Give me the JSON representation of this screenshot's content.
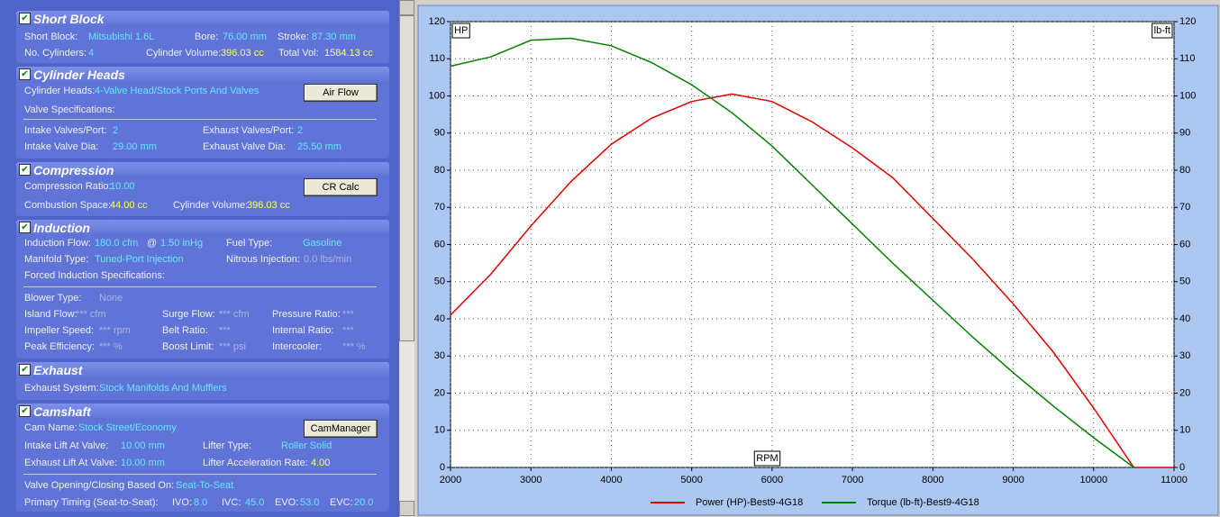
{
  "panel": {
    "sections": [
      {
        "title": "Short Block",
        "rows": [
          [
            {
              "label": "Short Block:",
              "value": "Mitsubishi 1.6L"
            },
            {
              "label": "Bore:",
              "value": "76.00 mm"
            },
            {
              "label": "Stroke:",
              "value": "87.30 mm"
            }
          ],
          [
            {
              "label": "No. Cylinders:",
              "value": "4"
            },
            {
              "label": "Cylinder Volume:",
              "value": "396.03 cc"
            },
            {
              "label": "Total Vol:",
              "value": "1584.13 cc"
            }
          ]
        ]
      },
      {
        "title": "Cylinder Heads",
        "button": "Air Flow",
        "rows": [
          [
            {
              "label": "Cylinder Heads:",
              "value": "4-Valve Head/Stock Ports And Valves"
            }
          ],
          [
            {
              "label": "Valve Specifications:"
            }
          ],
          [
            {
              "label": "Intake Valves/Port:",
              "value": "2"
            },
            {
              "label": "Exhaust Valves/Port:",
              "value": "2"
            }
          ],
          [
            {
              "label": "Intake Valve Dia:",
              "value": "29.00 mm"
            },
            {
              "label": "Exhaust Valve Dia:",
              "value": "25.50 mm"
            }
          ]
        ]
      },
      {
        "title": "Compression",
        "button": "CR Calc",
        "rows": [
          [
            {
              "label": "Compression Ratio:",
              "value": "10.00"
            }
          ],
          [
            {
              "label": "Combustion Space:",
              "value": "44.00 cc"
            },
            {
              "label": "Cylinder Volume:",
              "value": "396.03 cc"
            }
          ]
        ]
      },
      {
        "title": "Induction",
        "rows": [
          [
            {
              "label": "Induction Flow:",
              "value": "180.0 cfm"
            },
            {
              "label": "@",
              "value": "1.50 inHg"
            },
            {
              "label": "Fuel Type:",
              "value": "Gasoline"
            }
          ],
          [
            {
              "label": "Manifold Type:",
              "value": "Tuned-Port Injection"
            },
            {
              "label": "Nitrous Injection:",
              "value": "0.0 lbs/min"
            }
          ],
          [
            {
              "label": "Forced Induction Specifications:"
            }
          ],
          [
            {
              "label": "Blower Type:",
              "value": "None"
            }
          ],
          [
            {
              "label": "Island Flow:",
              "value": "*** cfm"
            },
            {
              "label": "Surge Flow:",
              "value": "*** cfm"
            },
            {
              "label": "Pressure Ratio:",
              "value": "***"
            }
          ],
          [
            {
              "label": "Impeller Speed:",
              "value": "*** rpm"
            },
            {
              "label": "Belt Ratio:",
              "value": "***"
            },
            {
              "label": "Internal Ratio:",
              "value": "***"
            }
          ],
          [
            {
              "label": "Peak Efficiency:",
              "value": "*** %"
            },
            {
              "label": "Boost Limit:",
              "value": "*** psi"
            },
            {
              "label": "Intercooler:",
              "value": "*** %"
            }
          ]
        ]
      },
      {
        "title": "Exhaust",
        "rows": [
          [
            {
              "label": "Exhaust System:",
              "value": "Stock Manifolds And Mufflers"
            }
          ]
        ]
      },
      {
        "title": "Camshaft",
        "button": "CamManager",
        "rows": [
          [
            {
              "label": "Cam Name:",
              "value": "Stock Street/Economy"
            }
          ],
          [
            {
              "label": "Intake Lift At Valve:",
              "value": "10.00 mm"
            },
            {
              "label": "Lifter Type:",
              "value": "Roller Solid"
            }
          ],
          [
            {
              "label": "Exhaust Lift At Valve:",
              "value": "10.00 mm"
            },
            {
              "label": "Lifter Acceleration Rate:",
              "value": "4.00"
            }
          ],
          [
            {
              "label": "Valve Opening/Closing Based On:",
              "value": "Seat-To-Seat"
            }
          ],
          [
            {
              "label": "Primary Timing  (Seat-to-Seat):"
            },
            {
              "label": "IVO:",
              "value": "8.0"
            },
            {
              "label": "IVC:",
              "value": "45.0"
            },
            {
              "label": "EVO:",
              "value": "53.0"
            },
            {
              "label": "EVC:",
              "value": "20.0"
            }
          ]
        ]
      }
    ]
  },
  "chart_data": {
    "type": "line",
    "y_label": "HP",
    "y2_label": "lb-ft",
    "x_label": "RPM",
    "x": [
      2000,
      2500,
      3000,
      3500,
      4000,
      4500,
      5000,
      5500,
      6000,
      6500,
      7000,
      7500,
      8000,
      8500,
      9000,
      9500,
      10000,
      10500,
      11000
    ],
    "series": [
      {
        "name": "Power (HP)-Best9-4G18",
        "color": "#e00000",
        "values": [
          41,
          52,
          65,
          77,
          87,
          94,
          98.5,
          100.5,
          98.5,
          93,
          86,
          78,
          67,
          56,
          44,
          31,
          16,
          0,
          0
        ]
      },
      {
        "name": "Torque (lb-ft)-Best9-4G18",
        "color": "#008000",
        "axis": "y2",
        "values": [
          108,
          110.5,
          115,
          115.5,
          113.5,
          109,
          103,
          95.5,
          86.5,
          76,
          65.5,
          55,
          45,
          35,
          25.5,
          16.5,
          8,
          0,
          null
        ]
      }
    ],
    "xlim": [
      2000,
      11000
    ],
    "xticks": [
      2000,
      3000,
      4000,
      5000,
      6000,
      7000,
      8000,
      9000,
      10000,
      11000
    ],
    "ylim": [
      0,
      120
    ],
    "yticks": [
      0,
      10,
      20,
      30,
      40,
      50,
      60,
      70,
      80,
      90,
      100,
      110,
      120
    ],
    "y2lim": [
      0,
      120
    ],
    "y2ticks": [
      0,
      10,
      20,
      30,
      40,
      50,
      60,
      70,
      80,
      90,
      100,
      110,
      120
    ],
    "grid": true,
    "legend": "bottom"
  }
}
